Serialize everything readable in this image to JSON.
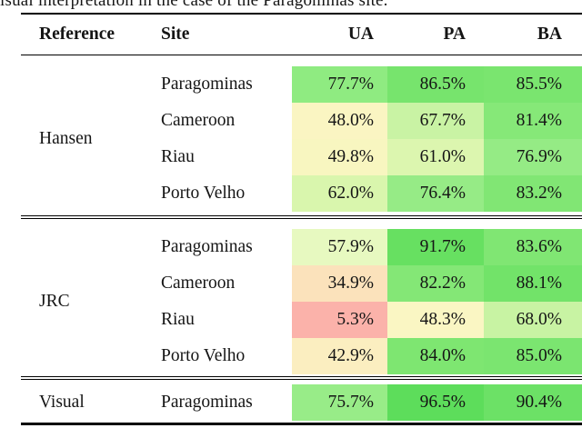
{
  "caption_fragment": "isual interpretation in the case of the Paragominas site.",
  "table": {
    "headers": {
      "reference": "Reference",
      "site": "Site",
      "ua": "UA",
      "pa": "PA",
      "ba": "BA"
    },
    "groups": [
      {
        "reference": "Hansen",
        "rows": [
          {
            "site": "Paragominas",
            "ua": {
              "text": "77.7%",
              "color": "#8feb81"
            },
            "pa": {
              "text": "86.5%",
              "color": "#77e46d"
            },
            "ba": {
              "text": "85.5%",
              "color": "#7ae56f"
            }
          },
          {
            "site": "Cameroon",
            "ua": {
              "text": "48.0%",
              "color": "#faf5c2"
            },
            "pa": {
              "text": "67.7%",
              "color": "#c9f3a4"
            },
            "ba": {
              "text": "81.4%",
              "color": "#86e878"
            }
          },
          {
            "site": "Riau",
            "ua": {
              "text": "49.8%",
              "color": "#f8f6c0"
            },
            "pa": {
              "text": "61.0%",
              "color": "#dcf6af"
            },
            "ba": {
              "text": "76.9%",
              "color": "#95eb85"
            }
          },
          {
            "site": "Porto Velho",
            "ua": {
              "text": "62.0%",
              "color": "#d9f6ad"
            },
            "pa": {
              "text": "76.4%",
              "color": "#96eb86"
            },
            "ba": {
              "text": "83.2%",
              "color": "#81e674"
            }
          }
        ]
      },
      {
        "reference": "JRC",
        "rows": [
          {
            "site": "Paragominas",
            "ua": {
              "text": "57.9%",
              "color": "#e7f9c0"
            },
            "pa": {
              "text": "91.7%",
              "color": "#67e061"
            },
            "ba": {
              "text": "83.6%",
              "color": "#80e673"
            }
          },
          {
            "site": "Cameroon",
            "ua": {
              "text": "34.9%",
              "color": "#fbe2bb"
            },
            "pa": {
              "text": "82.2%",
              "color": "#84e776"
            },
            "ba": {
              "text": "88.1%",
              "color": "#72e369"
            }
          },
          {
            "site": "Riau",
            "ua": {
              "text": "5.3%",
              "color": "#fbb2aa"
            },
            "pa": {
              "text": "48.3%",
              "color": "#faf6c3"
            },
            "ba": {
              "text": "68.0%",
              "color": "#c8f3a3"
            }
          },
          {
            "site": "Porto Velho",
            "ua": {
              "text": "42.9%",
              "color": "#fbeec0"
            },
            "pa": {
              "text": "84.0%",
              "color": "#7ee671"
            },
            "ba": {
              "text": "85.0%",
              "color": "#7be570"
            }
          }
        ]
      },
      {
        "reference": "Visual",
        "rows": [
          {
            "site": "Paragominas",
            "ua": {
              "text": "75.7%",
              "color": "#98ec88"
            },
            "pa": {
              "text": "96.5%",
              "color": "#5ddd5b"
            },
            "ba": {
              "text": "90.4%",
              "color": "#6ce166"
            }
          }
        ]
      }
    ]
  }
}
